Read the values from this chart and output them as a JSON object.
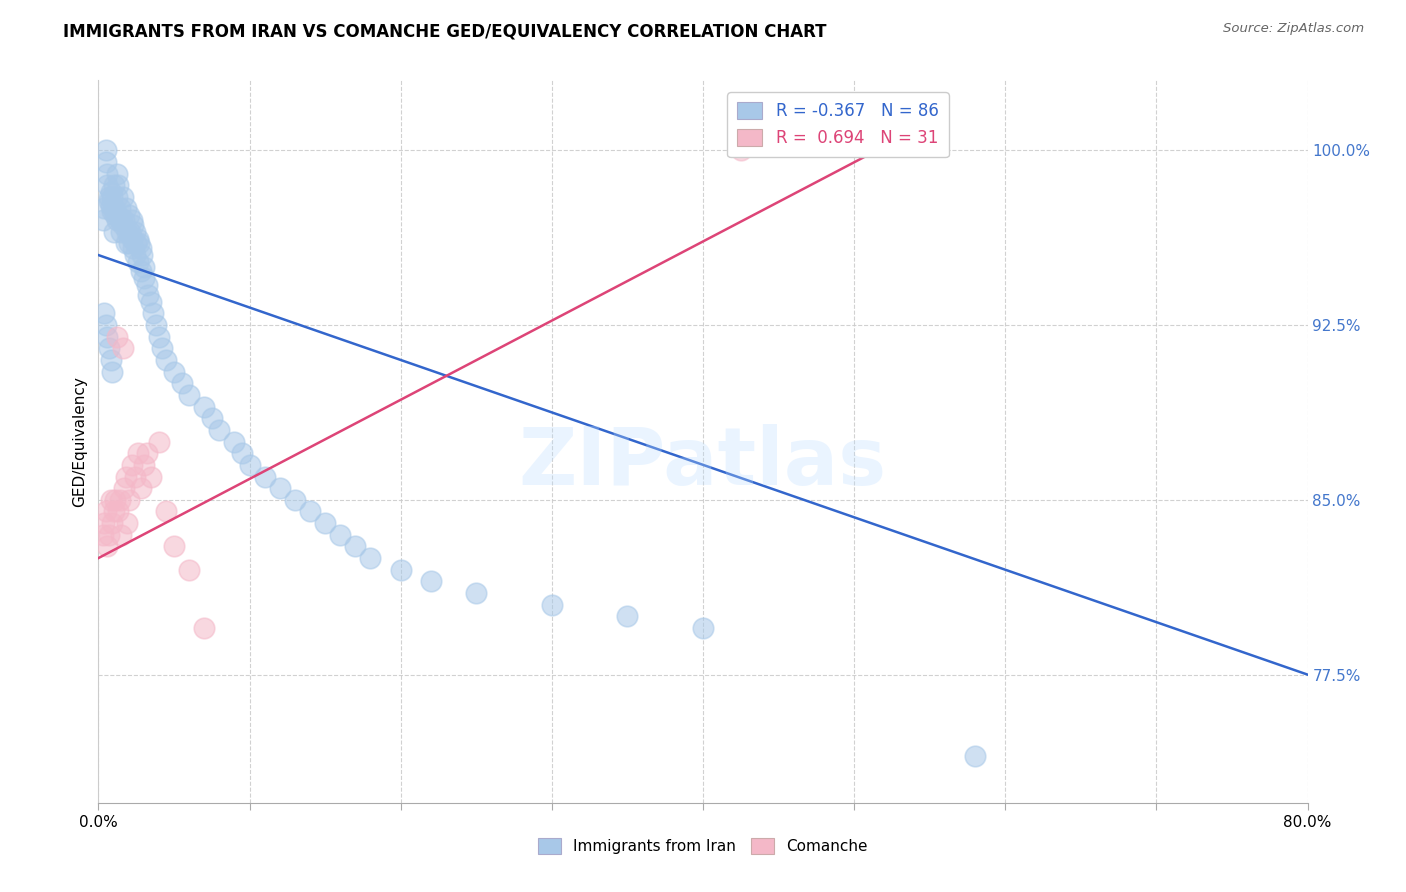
{
  "title": "IMMIGRANTS FROM IRAN VS COMANCHE GED/EQUIVALENCY CORRELATION CHART",
  "source": "Source: ZipAtlas.com",
  "ylabel": "GED/Equivalency",
  "xlim": [
    0.0,
    80.0
  ],
  "ylim": [
    72.0,
    103.0
  ],
  "yticks": [
    77.5,
    85.0,
    92.5,
    100.0
  ],
  "blue_R": -0.367,
  "blue_N": 86,
  "pink_R": 0.694,
  "pink_N": 31,
  "blue_color": "#a8c8e8",
  "pink_color": "#f4b8c8",
  "blue_line_color": "#3366cc",
  "pink_line_color": "#dd4477",
  "tick_label_color": "#4477cc",
  "watermark_text": "ZIPatlas",
  "blue_line_x0": 0.0,
  "blue_line_y0": 95.5,
  "blue_line_x1": 80.0,
  "blue_line_y1": 77.5,
  "pink_line_x0": 0.0,
  "pink_line_y0": 82.5,
  "pink_line_x1": 53.0,
  "pink_line_y1": 100.5,
  "blue_scatter_x": [
    0.3,
    0.4,
    0.5,
    0.5,
    0.6,
    0.6,
    0.7,
    0.7,
    0.8,
    0.8,
    0.9,
    0.9,
    1.0,
    1.0,
    1.0,
    1.1,
    1.2,
    1.2,
    1.2,
    1.3,
    1.3,
    1.4,
    1.5,
    1.5,
    1.6,
    1.6,
    1.7,
    1.8,
    1.8,
    1.9,
    2.0,
    2.0,
    2.1,
    2.2,
    2.2,
    2.3,
    2.3,
    2.4,
    2.4,
    2.5,
    2.6,
    2.6,
    2.7,
    2.8,
    2.8,
    2.9,
    3.0,
    3.0,
    3.2,
    3.3,
    3.5,
    3.6,
    3.8,
    4.0,
    4.2,
    4.5,
    5.0,
    5.5,
    6.0,
    7.0,
    7.5,
    8.0,
    9.0,
    9.5,
    10.0,
    11.0,
    12.0,
    13.0,
    14.0,
    15.0,
    16.0,
    17.0,
    18.0,
    20.0,
    22.0,
    25.0,
    30.0,
    35.0,
    40.0,
    0.4,
    0.5,
    0.6,
    0.7,
    0.8,
    0.9,
    58.0
  ],
  "blue_scatter_y": [
    97.0,
    97.5,
    100.0,
    99.5,
    98.5,
    99.0,
    98.0,
    97.8,
    98.2,
    97.6,
    98.0,
    97.4,
    98.5,
    97.5,
    96.5,
    97.2,
    99.0,
    98.0,
    97.0,
    98.5,
    97.2,
    97.5,
    96.5,
    97.0,
    98.0,
    96.8,
    97.0,
    97.5,
    96.0,
    96.5,
    97.2,
    96.0,
    96.5,
    97.0,
    96.2,
    96.8,
    95.8,
    96.5,
    95.5,
    96.0,
    96.2,
    95.2,
    96.0,
    95.8,
    94.8,
    95.5,
    95.0,
    94.5,
    94.2,
    93.8,
    93.5,
    93.0,
    92.5,
    92.0,
    91.5,
    91.0,
    90.5,
    90.0,
    89.5,
    89.0,
    88.5,
    88.0,
    87.5,
    87.0,
    86.5,
    86.0,
    85.5,
    85.0,
    84.5,
    84.0,
    83.5,
    83.0,
    82.5,
    82.0,
    81.5,
    81.0,
    80.5,
    80.0,
    79.5,
    93.0,
    92.5,
    92.0,
    91.5,
    91.0,
    90.5,
    74.0
  ],
  "pink_scatter_x": [
    0.3,
    0.4,
    0.5,
    0.6,
    0.7,
    0.8,
    0.9,
    1.0,
    1.1,
    1.2,
    1.3,
    1.4,
    1.5,
    1.6,
    1.7,
    1.8,
    1.9,
    2.0,
    2.2,
    2.4,
    2.6,
    2.8,
    3.0,
    3.2,
    3.5,
    4.0,
    4.5,
    5.0,
    6.0,
    7.0,
    42.5
  ],
  "pink_scatter_y": [
    83.5,
    84.0,
    84.5,
    83.0,
    83.5,
    85.0,
    84.0,
    84.5,
    85.0,
    92.0,
    84.5,
    85.0,
    83.5,
    91.5,
    85.5,
    86.0,
    84.0,
    85.0,
    86.5,
    86.0,
    87.0,
    85.5,
    86.5,
    87.0,
    86.0,
    87.5,
    84.5,
    83.0,
    82.0,
    79.5,
    100.0
  ]
}
